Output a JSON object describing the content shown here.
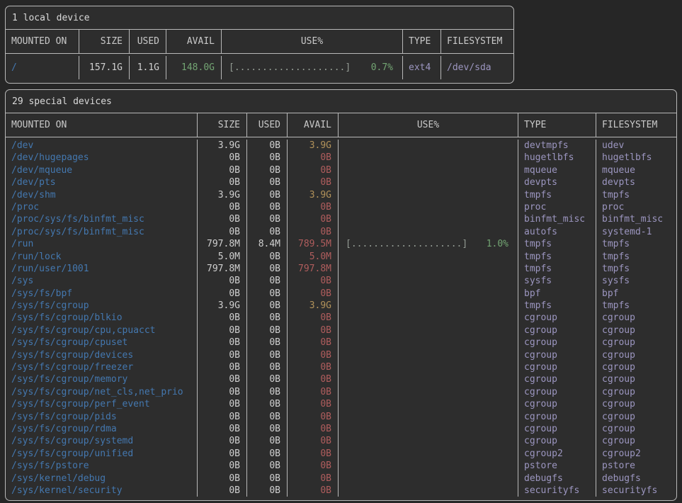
{
  "palette": {
    "background": "#262626",
    "panel": "#2d2d2d",
    "border": "#b8b8b8",
    "mount_blue": "#4478b0",
    "avail_green": "#73a573",
    "avail_yellow": "#b2925a",
    "avail_red": "#b05d5d",
    "type_lavender": "#9c96c0",
    "percent_green": "#73a573"
  },
  "tables": [
    {
      "title": "1 local device",
      "columns": [
        "MOUNTED ON",
        "SIZE",
        "USED",
        "AVAIL",
        "USE%",
        "TYPE",
        "FILESYSTEM"
      ],
      "rows": [
        {
          "mount": "/",
          "size": "157.1G",
          "used": "1.1G",
          "avail": "148.0G",
          "avail_color": "green",
          "bar": "[....................]",
          "pct": "0.7%",
          "type": "ext4",
          "fs": "/dev/sda"
        }
      ]
    },
    {
      "title": "29 special devices",
      "columns": [
        "MOUNTED ON",
        "SIZE",
        "USED",
        "AVAIL",
        "USE%",
        "TYPE",
        "FILESYSTEM"
      ],
      "rows": [
        {
          "mount": "/dev",
          "size": "3.9G",
          "used": "0B",
          "avail": "3.9G",
          "avail_color": "yellow",
          "bar": "",
          "pct": "",
          "type": "devtmpfs",
          "fs": "udev"
        },
        {
          "mount": "/dev/hugepages",
          "size": "0B",
          "used": "0B",
          "avail": "0B",
          "avail_color": "red",
          "bar": "",
          "pct": "",
          "type": "hugetlbfs",
          "fs": "hugetlbfs"
        },
        {
          "mount": "/dev/mqueue",
          "size": "0B",
          "used": "0B",
          "avail": "0B",
          "avail_color": "red",
          "bar": "",
          "pct": "",
          "type": "mqueue",
          "fs": "mqueue"
        },
        {
          "mount": "/dev/pts",
          "size": "0B",
          "used": "0B",
          "avail": "0B",
          "avail_color": "red",
          "bar": "",
          "pct": "",
          "type": "devpts",
          "fs": "devpts"
        },
        {
          "mount": "/dev/shm",
          "size": "3.9G",
          "used": "0B",
          "avail": "3.9G",
          "avail_color": "yellow",
          "bar": "",
          "pct": "",
          "type": "tmpfs",
          "fs": "tmpfs"
        },
        {
          "mount": "/proc",
          "size": "0B",
          "used": "0B",
          "avail": "0B",
          "avail_color": "red",
          "bar": "",
          "pct": "",
          "type": "proc",
          "fs": "proc"
        },
        {
          "mount": "/proc/sys/fs/binfmt_misc",
          "size": "0B",
          "used": "0B",
          "avail": "0B",
          "avail_color": "red",
          "bar": "",
          "pct": "",
          "type": "binfmt_misc",
          "fs": "binfmt_misc"
        },
        {
          "mount": "/proc/sys/fs/binfmt_misc",
          "size": "0B",
          "used": "0B",
          "avail": "0B",
          "avail_color": "red",
          "bar": "",
          "pct": "",
          "type": "autofs",
          "fs": "systemd-1"
        },
        {
          "mount": "/run",
          "size": "797.8M",
          "used": "8.4M",
          "avail": "789.5M",
          "avail_color": "red",
          "bar": "[....................]",
          "pct": "1.0%",
          "type": "tmpfs",
          "fs": "tmpfs"
        },
        {
          "mount": "/run/lock",
          "size": "5.0M",
          "used": "0B",
          "avail": "5.0M",
          "avail_color": "red",
          "bar": "",
          "pct": "",
          "type": "tmpfs",
          "fs": "tmpfs"
        },
        {
          "mount": "/run/user/1001",
          "size": "797.8M",
          "used": "0B",
          "avail": "797.8M",
          "avail_color": "red",
          "bar": "",
          "pct": "",
          "type": "tmpfs",
          "fs": "tmpfs"
        },
        {
          "mount": "/sys",
          "size": "0B",
          "used": "0B",
          "avail": "0B",
          "avail_color": "red",
          "bar": "",
          "pct": "",
          "type": "sysfs",
          "fs": "sysfs"
        },
        {
          "mount": "/sys/fs/bpf",
          "size": "0B",
          "used": "0B",
          "avail": "0B",
          "avail_color": "red",
          "bar": "",
          "pct": "",
          "type": "bpf",
          "fs": "bpf"
        },
        {
          "mount": "/sys/fs/cgroup",
          "size": "3.9G",
          "used": "0B",
          "avail": "3.9G",
          "avail_color": "yellow",
          "bar": "",
          "pct": "",
          "type": "tmpfs",
          "fs": "tmpfs"
        },
        {
          "mount": "/sys/fs/cgroup/blkio",
          "size": "0B",
          "used": "0B",
          "avail": "0B",
          "avail_color": "red",
          "bar": "",
          "pct": "",
          "type": "cgroup",
          "fs": "cgroup"
        },
        {
          "mount": "/sys/fs/cgroup/cpu,cpuacct",
          "size": "0B",
          "used": "0B",
          "avail": "0B",
          "avail_color": "red",
          "bar": "",
          "pct": "",
          "type": "cgroup",
          "fs": "cgroup"
        },
        {
          "mount": "/sys/fs/cgroup/cpuset",
          "size": "0B",
          "used": "0B",
          "avail": "0B",
          "avail_color": "red",
          "bar": "",
          "pct": "",
          "type": "cgroup",
          "fs": "cgroup"
        },
        {
          "mount": "/sys/fs/cgroup/devices",
          "size": "0B",
          "used": "0B",
          "avail": "0B",
          "avail_color": "red",
          "bar": "",
          "pct": "",
          "type": "cgroup",
          "fs": "cgroup"
        },
        {
          "mount": "/sys/fs/cgroup/freezer",
          "size": "0B",
          "used": "0B",
          "avail": "0B",
          "avail_color": "red",
          "bar": "",
          "pct": "",
          "type": "cgroup",
          "fs": "cgroup"
        },
        {
          "mount": "/sys/fs/cgroup/memory",
          "size": "0B",
          "used": "0B",
          "avail": "0B",
          "avail_color": "red",
          "bar": "",
          "pct": "",
          "type": "cgroup",
          "fs": "cgroup"
        },
        {
          "mount": "/sys/fs/cgroup/net_cls,net_prio",
          "size": "0B",
          "used": "0B",
          "avail": "0B",
          "avail_color": "red",
          "bar": "",
          "pct": "",
          "type": "cgroup",
          "fs": "cgroup"
        },
        {
          "mount": "/sys/fs/cgroup/perf_event",
          "size": "0B",
          "used": "0B",
          "avail": "0B",
          "avail_color": "red",
          "bar": "",
          "pct": "",
          "type": "cgroup",
          "fs": "cgroup"
        },
        {
          "mount": "/sys/fs/cgroup/pids",
          "size": "0B",
          "used": "0B",
          "avail": "0B",
          "avail_color": "red",
          "bar": "",
          "pct": "",
          "type": "cgroup",
          "fs": "cgroup"
        },
        {
          "mount": "/sys/fs/cgroup/rdma",
          "size": "0B",
          "used": "0B",
          "avail": "0B",
          "avail_color": "red",
          "bar": "",
          "pct": "",
          "type": "cgroup",
          "fs": "cgroup"
        },
        {
          "mount": "/sys/fs/cgroup/systemd",
          "size": "0B",
          "used": "0B",
          "avail": "0B",
          "avail_color": "red",
          "bar": "",
          "pct": "",
          "type": "cgroup",
          "fs": "cgroup"
        },
        {
          "mount": "/sys/fs/cgroup/unified",
          "size": "0B",
          "used": "0B",
          "avail": "0B",
          "avail_color": "red",
          "bar": "",
          "pct": "",
          "type": "cgroup2",
          "fs": "cgroup2"
        },
        {
          "mount": "/sys/fs/pstore",
          "size": "0B",
          "used": "0B",
          "avail": "0B",
          "avail_color": "red",
          "bar": "",
          "pct": "",
          "type": "pstore",
          "fs": "pstore"
        },
        {
          "mount": "/sys/kernel/debug",
          "size": "0B",
          "used": "0B",
          "avail": "0B",
          "avail_color": "red",
          "bar": "",
          "pct": "",
          "type": "debugfs",
          "fs": "debugfs"
        },
        {
          "mount": "/sys/kernel/security",
          "size": "0B",
          "used": "0B",
          "avail": "0B",
          "avail_color": "red",
          "bar": "",
          "pct": "",
          "type": "securityfs",
          "fs": "securityfs"
        }
      ]
    }
  ]
}
